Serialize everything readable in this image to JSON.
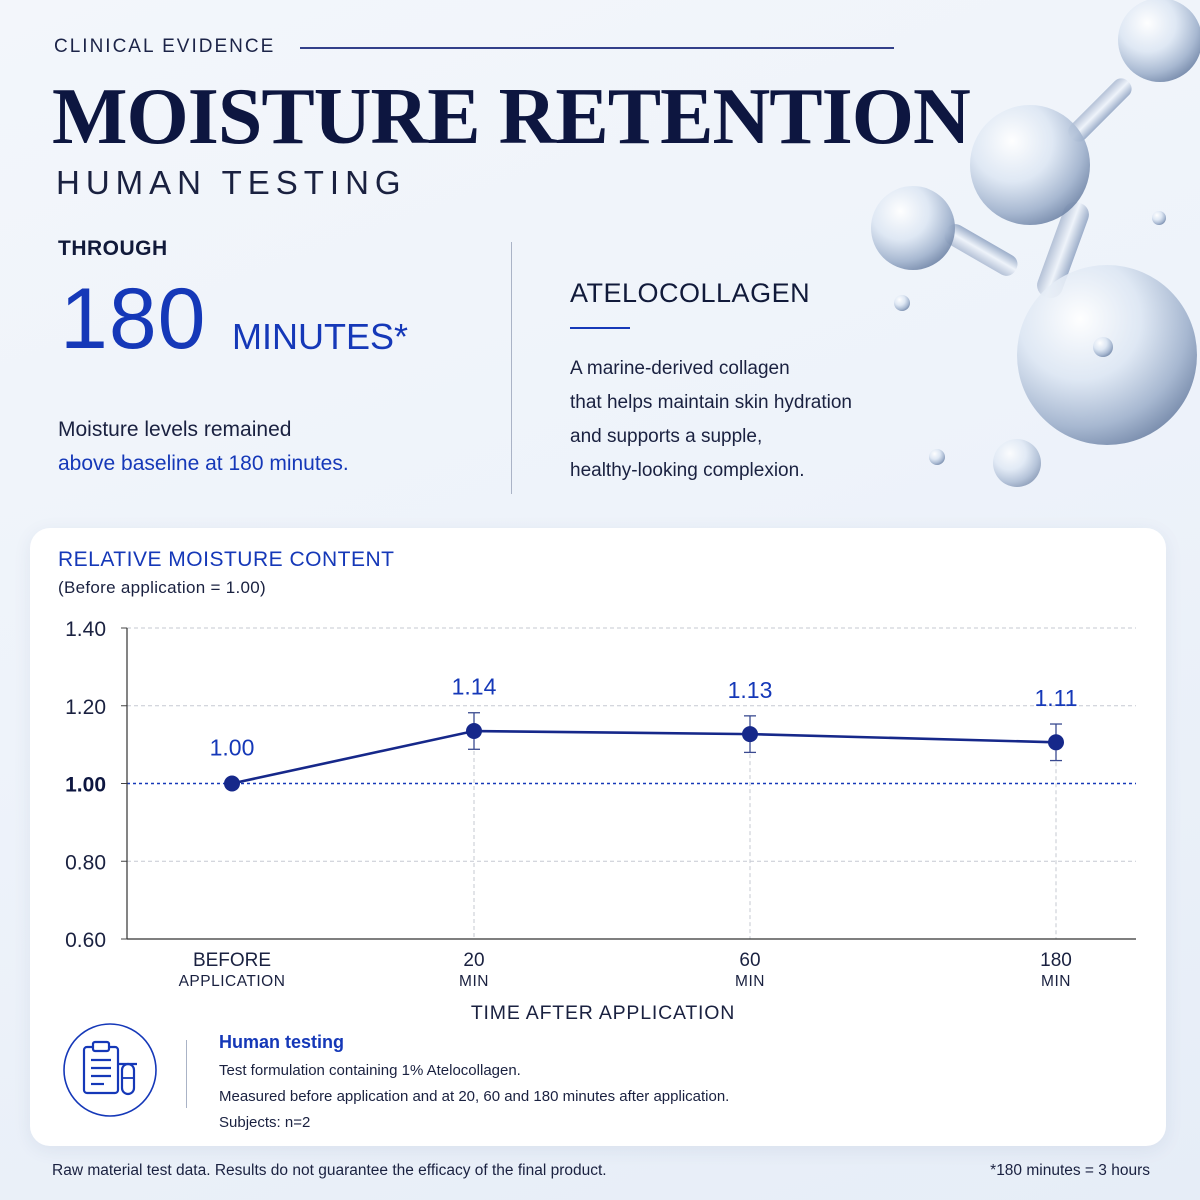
{
  "header": {
    "kicker": "CLINICAL EVIDENCE",
    "title": "MOISTURE RETENTION",
    "subtitle": "HUMAN TESTING"
  },
  "highlight": {
    "label": "THROUGH",
    "number": "180",
    "unit": "MINUTES*",
    "line1": "Moisture levels remained",
    "line2": "above baseline at 180 minutes."
  },
  "ingredient": {
    "name": "ATELOCOLLAGEN",
    "description": [
      "A marine-derived collagen",
      "that helps maintain skin hydration",
      "and supports a supple,",
      "healthy-looking complexion."
    ]
  },
  "chart_data": {
    "type": "line",
    "title": "RELATIVE MOISTURE CONTENT",
    "subtitle": "(Before application = 1.00)",
    "xlabel": "TIME AFTER APPLICATION",
    "ylabel": "",
    "categories": [
      {
        "top": "BEFORE",
        "bottom": "APPLICATION"
      },
      {
        "top": "20",
        "bottom": "MIN"
      },
      {
        "top": "60",
        "bottom": "MIN"
      },
      {
        "top": "180",
        "bottom": "MIN"
      }
    ],
    "values": [
      1.0,
      1.135,
      1.127,
      1.106
    ],
    "data_labels": [
      "1.00",
      "1.14",
      "1.13",
      "1.11"
    ],
    "error_bars": [
      0,
      0.047,
      0.047,
      0.047
    ],
    "ylim": [
      0.6,
      1.4
    ],
    "yticks": [
      "1.40",
      "1.20",
      "1.00",
      "0.80",
      "0.60"
    ],
    "ytick_values": [
      1.4,
      1.2,
      1.0,
      0.8,
      0.6
    ],
    "baseline": 1.0,
    "grid": true,
    "colors": {
      "line": "#16288a",
      "label": "#1538b8",
      "baseline": "#1538b8",
      "grid": "#c5c9d2"
    }
  },
  "info": {
    "icon": "clipboard-test-tube-icon",
    "title": "Human testing",
    "line1": "Test formulation containing 1% Atelocollagen.",
    "line2": "Measured before application and at 20, 60 and 180 minutes after application.",
    "line3": "Subjects: n=2"
  },
  "footer": {
    "disclaimer": "Raw material test data. Results do not guarantee the efficacy of the final product.",
    "note": "*180 minutes = 3 hours"
  }
}
